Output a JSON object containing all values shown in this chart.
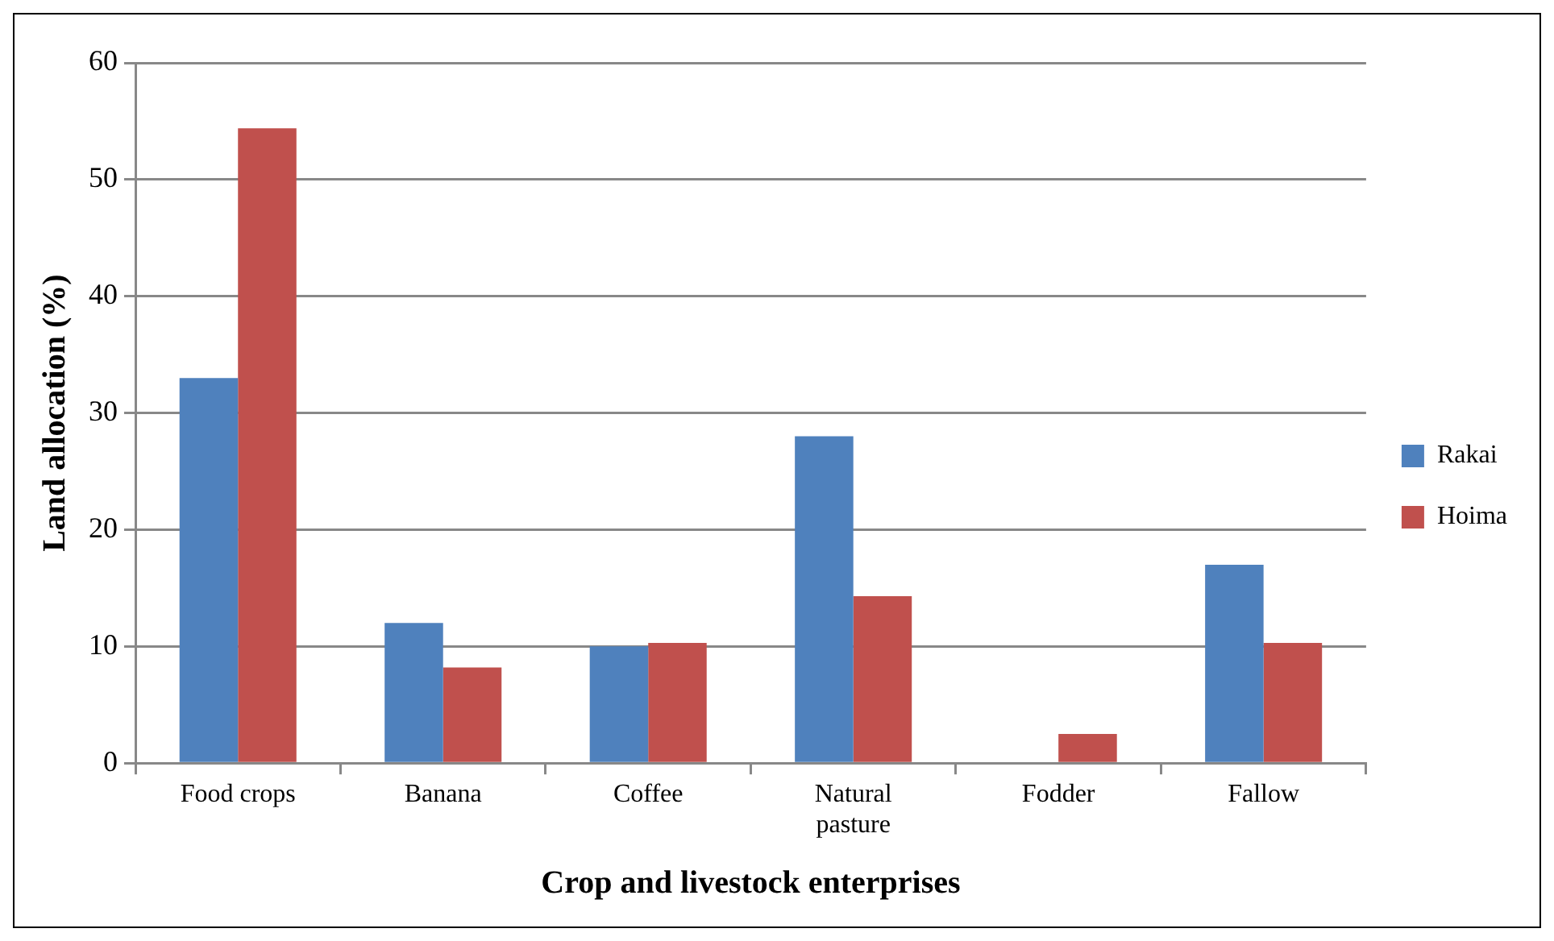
{
  "chart_data": {
    "type": "bar",
    "xlabel": "Crop and livestock enterprises",
    "ylabel": "Land allocation (%)",
    "categories": [
      "Food crops",
      "Banana",
      "Coffee",
      "Natural pasture",
      "Fodder",
      "Fallow"
    ],
    "series": [
      {
        "name": "Rakai",
        "color": "#4f81bd",
        "values": [
          33,
          12,
          10,
          28,
          0,
          17
        ]
      },
      {
        "name": "Hoima",
        "color": "#c0504d",
        "values": [
          54.4,
          8.2,
          10.3,
          14.3,
          2.5,
          10.3
        ]
      }
    ],
    "ylim": [
      0,
      60
    ],
    "yticks": [
      0,
      10,
      20,
      30,
      40,
      50,
      60
    ],
    "grid": "y",
    "legend": "right"
  }
}
